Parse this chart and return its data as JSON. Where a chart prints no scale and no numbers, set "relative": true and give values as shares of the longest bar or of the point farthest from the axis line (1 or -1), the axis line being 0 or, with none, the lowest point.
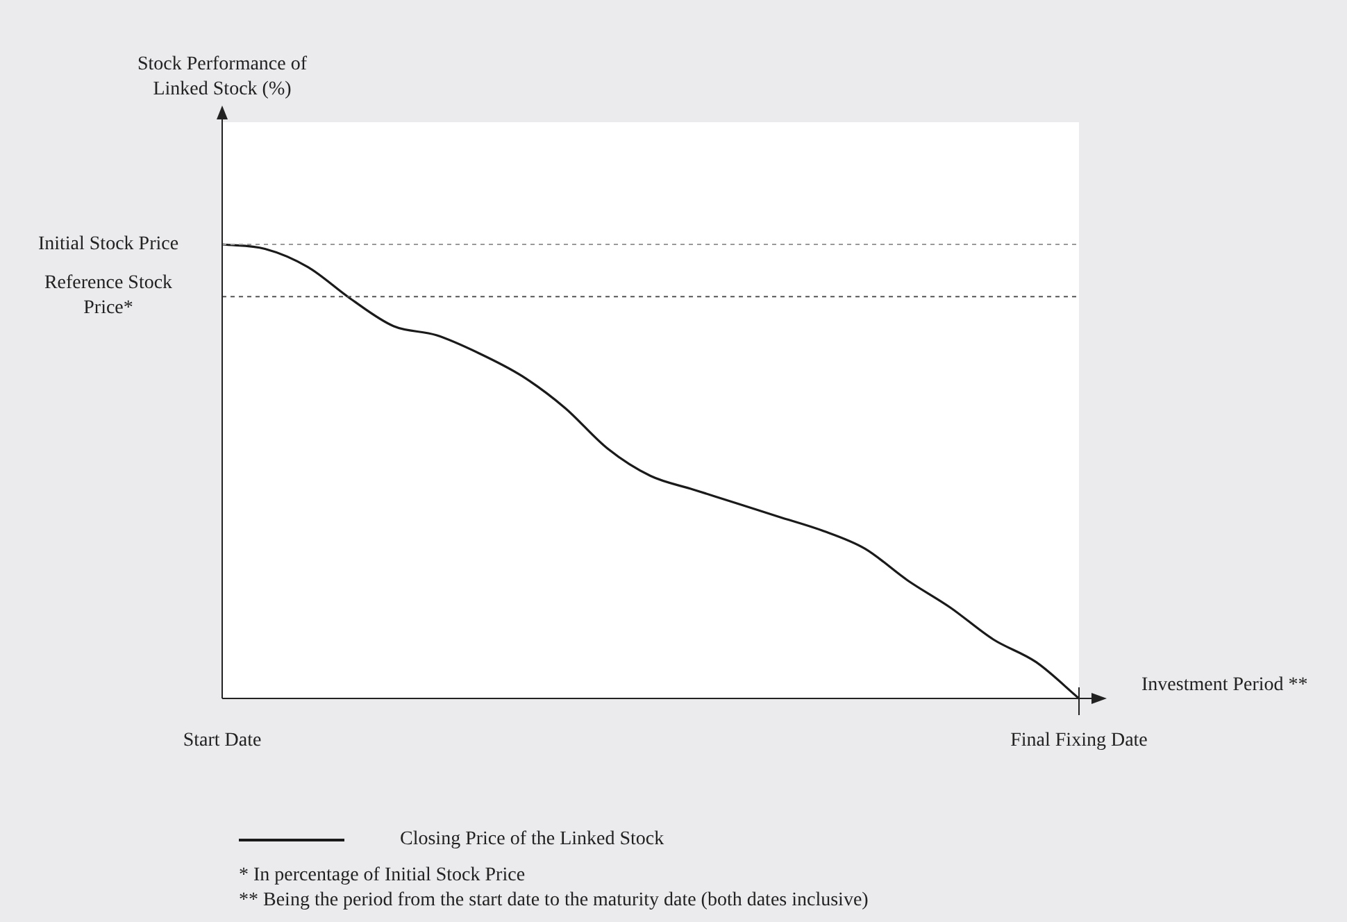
{
  "chart_data": {
    "type": "line",
    "relative": true,
    "xlabel": "Investment Period **",
    "categories": [
      "Start Date",
      null,
      null,
      null,
      null,
      null,
      null,
      null,
      null,
      null,
      null,
      null,
      null,
      null,
      null,
      null,
      null,
      null,
      null,
      null,
      "Final Fixing Date"
    ],
    "series": [
      {
        "name": "Closing Price of the Linked Stock",
        "color": "#1a1a1a",
        "values": [
          1.0,
          0.99,
          0.95,
          0.88,
          0.82,
          0.8,
          0.76,
          0.71,
          0.64,
          0.55,
          0.49,
          0.46,
          0.43,
          0.4,
          0.37,
          0.33,
          0.26,
          0.2,
          0.13,
          0.08,
          0.0
        ]
      }
    ],
    "ref_lines": [
      {
        "axis": "y",
        "value": 1.0,
        "label": "Initial Stock Price",
        "color": "#999999",
        "line_style": "dashed"
      },
      {
        "axis": "y",
        "value": 0.885,
        "label": "Reference Stock Price*",
        "color": "#555555",
        "line_style": "dashed"
      }
    ],
    "legend": "bottom",
    "marker": "none",
    "line_style": "solid",
    "grid": false,
    "annotations": [
      "Stock Performance of Linked Stock (%)",
      "*    In percentage of Initial Stock Price",
      "**  Being the period from the start date to the maturity date (both dates inclusive)"
    ]
  }
}
